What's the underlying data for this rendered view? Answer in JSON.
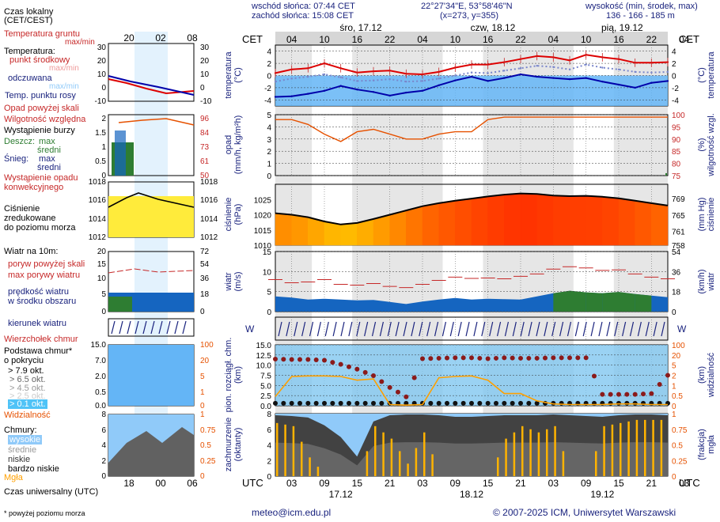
{
  "header": {
    "sunrise": "wschód słońca: 07:44 CET",
    "sunset": "zachód słońca: 15:08 CET",
    "coords": "22°27'34\"E, 53°58'46\"N",
    "grid": "(x=273,  y=355)",
    "elev_title": "wysokość (min, środek, max)",
    "elev_values": "136 - 166 - 185 m"
  },
  "time_axis": {
    "cet_label": "CET",
    "utc_label": "UTC",
    "cet_ticks": [
      "04",
      "10",
      "16",
      "22",
      "04",
      "10",
      "16",
      "22",
      "04",
      "10",
      "16",
      "22",
      "04"
    ],
    "utc_ticks": [
      "03",
      "09",
      "15",
      "21",
      "03",
      "09",
      "15",
      "21",
      "03",
      "09",
      "15",
      "21",
      "03"
    ],
    "top_days": [
      "śro, 17.12",
      "czw, 18.12",
      "pią, 19.12"
    ],
    "bottom_days": [
      "17.12",
      "18.12",
      "19.12"
    ]
  },
  "legend": {
    "time_local": "Czas lokalny",
    "time_local2": "(CET/CEST)",
    "ground_temp": "Temperatura gruntu",
    "ground_temp_mm": "max/min",
    "temperature": "Temperatura:",
    "mid_point": "punkt środkowy",
    "mid_mm": "max/min",
    "felt": "odczuwana",
    "felt_mm": "max/min",
    "dew": "Temp. punktu rosy",
    "precip_above": "Opad powyżej skali",
    "humidity": "Wilgotność względna",
    "storm": "Wystąpienie burzy",
    "rain": "Deszcz:",
    "rain_max": "max",
    "rain_mid": "średni",
    "snow": "Śnieg:",
    "snow_max": "max",
    "snow_mid": "średni",
    "conv1": "Wystąpienie opadu",
    "conv2": "konwekcyjnego",
    "pressure1": "Ciśnienie",
    "pressure2": "zredukowane",
    "pressure3": "do poziomu morza",
    "wind_title": "Wiatr na 10m:",
    "gust_above": "poryw powyżej skali",
    "gust_max": "max porywy wiatru",
    "wind_speed1": "prędkość wiatru",
    "wind_speed2": "w środku obszaru",
    "wind_dir": "kierunek wiatru",
    "cloud_top": "Wierzchołek chmur",
    "cloud_base1": "Podstawa chmur*",
    "cloud_base2": "o pokryciu",
    "okt": [
      "> 7.9 okt.",
      "> 6.5 okt.",
      "> 4.5 okt.",
      "> 2.5 okt.",
      "> 0.1 okt."
    ],
    "visibility": "Widzialność",
    "clouds": "Chmury:",
    "high": "wysokie",
    "mid_cl": "średnie",
    "low": "niskie",
    "very_low": "bardzo niskie",
    "fog": "Mgła",
    "utc_time": "Czas uniwersalny (UTC)",
    "footnote": "* powyżej poziomu morza",
    "leg_top_ticks": [
      "20",
      "02",
      "08"
    ],
    "leg_bot_ticks": [
      "18",
      "00",
      "06"
    ]
  },
  "left_axes": {
    "temperature": "temperatura",
    "temperature_unit": "(°C)",
    "precip": "opad",
    "precip_unit": "(mm/h, kg/m²h)",
    "pressure": "ciśnienie",
    "pressure_unit": "(hPa)",
    "wind": "wiatr",
    "wind_unit": "(m/s)",
    "cloud1": "pion. rozciągł. chm.",
    "cloud2": "(km)",
    "cover1": "zachmurzenie",
    "cover2": "(oktanty)"
  },
  "right_axes": {
    "temperature": "temperatura",
    "temperature_unit": "(°C)",
    "humidity": "wilgotność wzgl.",
    "humidity_unit": "(%)",
    "pressure": "ciśnienie",
    "pressure_unit": "(mm Hg)",
    "wind": "wiatr",
    "wind_unit": "(km/h)",
    "visibility": "widzialność",
    "visibility_unit": "(km)",
    "fog": "mgła",
    "fog_unit": "(frakcja)"
  },
  "footer": {
    "email": "meteo@icm.edu.pl",
    "copyright": "© 2007-2025 ICM, Uniwersytet Warszawski"
  },
  "colors": {
    "temp_red": "#dd0000",
    "dew_blue": "#0000aa",
    "felt_blue": "#1976d2",
    "humidity": "#e65100",
    "pressure_fill": "#ff9800",
    "wind_fill": "#1565c0",
    "visibility": "#ffa000",
    "cloud_dark": "#424242"
  },
  "chart_data": [
    {
      "type": "line",
      "title": "temperatura",
      "ylabel": "temperatura (°C)",
      "ylim": [
        -5,
        5
      ],
      "x_hours_utc": [
        0,
        3,
        6,
        9,
        12,
        15,
        18,
        21,
        24,
        27,
        30,
        33,
        36,
        39,
        42,
        45,
        48,
        51,
        54,
        57,
        60,
        63,
        66,
        69,
        72
      ],
      "series": [
        {
          "name": "punkt środkowy",
          "values": [
            0.4,
            1.0,
            1.2,
            2.0,
            1.2,
            0.5,
            0.7,
            0.8,
            0.3,
            0.2,
            0.6,
            1.3,
            1.8,
            1.8,
            2.2,
            2.7,
            3.2,
            3.0,
            2.5,
            3.4,
            3.0,
            2.7,
            2.1,
            2.1,
            2.2
          ]
        },
        {
          "name": "punkt rosy",
          "values": [
            -3.5,
            -3.4,
            -3.0,
            -2.5,
            -1.7,
            -2.3,
            -2.7,
            -3.3,
            -2.8,
            -2.5,
            -1.6,
            -0.8,
            -0.2,
            -0.9,
            -0.4,
            0.2,
            -0.2,
            -0.4,
            -0.6,
            -0.4,
            -1.0,
            -1.5,
            -2.0,
            -1.2,
            -0.9
          ]
        },
        {
          "name": "odczuwana",
          "values": [
            -1.0,
            -0.5,
            -0.2,
            0.2,
            -0.3,
            -0.9,
            -0.8,
            -0.6,
            -1.0,
            -0.9,
            -0.5,
            0.0,
            0.5,
            0.4,
            0.8,
            1.2,
            1.6,
            1.4,
            1.0,
            1.8,
            1.3,
            1.0,
            0.6,
            0.5,
            0.6
          ]
        }
      ]
    },
    {
      "type": "line",
      "title": "wilgotność / opad",
      "ylabel": "opad (mm/h, kg/m²h)",
      "ylim": [
        0,
        5
      ],
      "y2lim": [
        75,
        100
      ],
      "series": [
        {
          "name": "wilgotność względna",
          "values": [
            98,
            98,
            96,
            92,
            89,
            93,
            94,
            92,
            90,
            90,
            92,
            93,
            93,
            98,
            99,
            99,
            99,
            99,
            99,
            99,
            99,
            99,
            99,
            99,
            99
          ]
        },
        {
          "name": "opad",
          "values": [
            0,
            0,
            0,
            0,
            0,
            0,
            0,
            0,
            0,
            0,
            0,
            0,
            0,
            0,
            0,
            0,
            0,
            0,
            0,
            0,
            0,
            0,
            0,
            0,
            0.2
          ]
        }
      ]
    },
    {
      "type": "area",
      "title": "ciśnienie",
      "ylabel": "ciśnienie (hPa)",
      "ylim": [
        1010,
        1030
      ],
      "series": [
        {
          "name": "ciśnienie",
          "values": [
            1020.5,
            1020.0,
            1019.2,
            1017.8,
            1016.8,
            1017.3,
            1018.6,
            1020.0,
            1021.4,
            1022.8,
            1023.8,
            1024.6,
            1025.3,
            1026.0,
            1026.6,
            1027.0,
            1026.8,
            1026.3,
            1026.1,
            1026.2,
            1025.9,
            1025.4,
            1024.6,
            1023.8,
            1023.0
          ]
        }
      ]
    },
    {
      "type": "area",
      "title": "wiatr",
      "ylabel": "wiatr (m/s)",
      "ylim": [
        0,
        15
      ],
      "series": [
        {
          "name": "prędkość wiatru",
          "values": [
            3.8,
            3.5,
            3.0,
            3.2,
            3.0,
            2.8,
            2.9,
            2.4,
            1.9,
            2.5,
            3.0,
            3.4,
            3.0,
            3.2,
            3.1,
            3.0,
            3.8,
            4.6,
            5.2,
            4.8,
            4.6,
            4.9,
            4.4,
            4.0,
            3.6
          ]
        },
        {
          "name": "max porywy wiatru",
          "values": [
            8.0,
            7.2,
            7.4,
            8.0,
            6.8,
            6.6,
            7.0,
            6.3,
            6.0,
            6.8,
            7.8,
            8.6,
            8.3,
            8.4,
            8.2,
            8.8,
            9.4,
            10.6,
            11.2,
            10.9,
            10.3,
            10.4,
            9.4,
            8.6,
            8.2
          ]
        }
      ]
    },
    {
      "type": "scatter",
      "title": "pion. rozciągł. chmur",
      "ylabel": "(km)",
      "ylim": [
        0,
        15
      ],
      "series": [
        {
          "name": "wierzchołek chmur",
          "values": [
            11.5,
            11.4,
            11.4,
            11.2,
            10.2,
            9.0,
            7.4,
            4.5,
            2.2,
            11.6,
            11.7,
            11.8,
            11.8,
            11.6,
            11.8,
            11.7,
            11.7,
            11.8,
            11.8,
            11.8,
            2.8,
            2.8,
            2.8,
            3.0,
            7.5
          ]
        },
        {
          "name": "widzialność",
          "values": [
            1.5,
            4.8,
            4.9,
            4.9,
            4.8,
            4.2,
            4.4,
            0.2,
            0.1,
            0.2,
            4.6,
            4.8,
            4.9,
            4.2,
            2.0,
            2.0,
            0.8,
            0.3,
            0.2,
            0.2,
            0.2,
            0.3,
            0.3,
            0.2,
            0.2
          ]
        }
      ]
    },
    {
      "type": "bar",
      "title": "zachmurzenie",
      "ylabel": "(oktanty)",
      "ylim": [
        0,
        8
      ],
      "series": [
        {
          "name": "mgła",
          "values": [
            0.85,
            0.8,
            0.3,
            0.0,
            0.0,
            0.0,
            0.8,
            0.6,
            0.2,
            0.7,
            0.0,
            0.0,
            0.0,
            0.0,
            0.6,
            0.8,
            0.7,
            0.8,
            0.0,
            0.0,
            0.8,
            0.85,
            0.9,
            0.9,
            0.9
          ]
        },
        {
          "name": "chmury niskie",
          "values": [
            7.8,
            7.7,
            7.5,
            6.5,
            5.0,
            2.5,
            7.0,
            7.8,
            7.9,
            7.9,
            7.8,
            7.6,
            7.6,
            7.7,
            7.8,
            7.8,
            7.8,
            7.9,
            7.8,
            7.7,
            7.6,
            7.8,
            7.9,
            7.9,
            7.8
          ]
        }
      ]
    }
  ]
}
